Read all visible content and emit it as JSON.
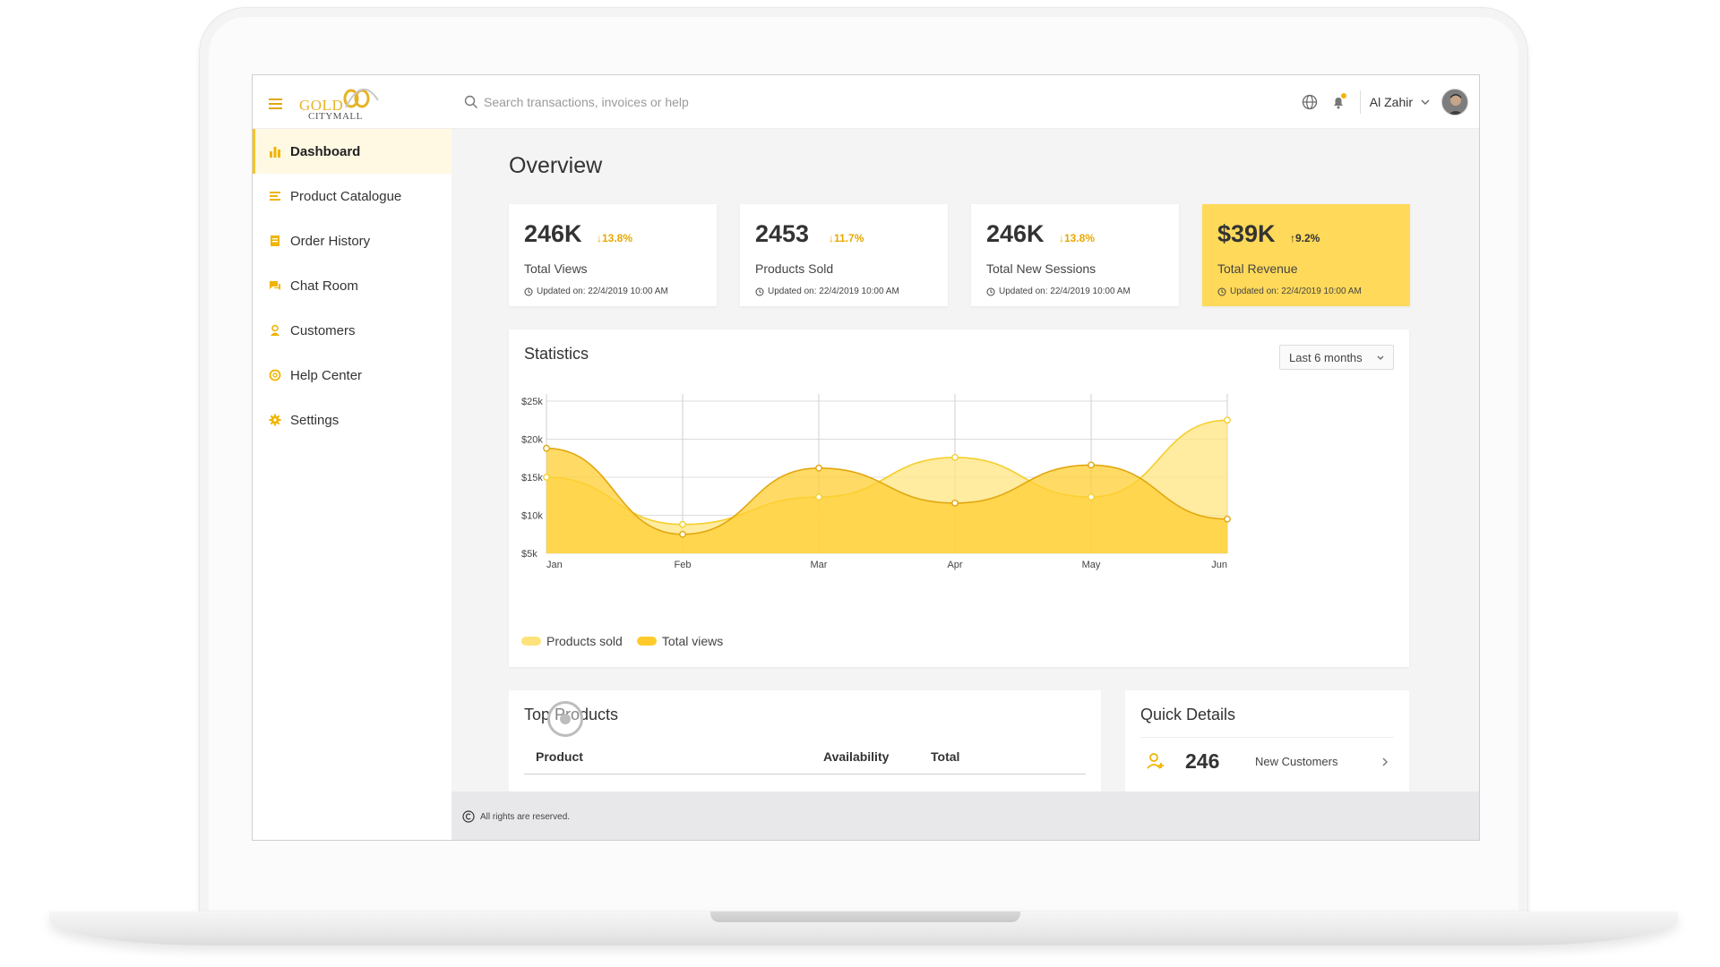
{
  "brand": {
    "logo_line1": "GOLD",
    "logo_line2": "CITYMALL"
  },
  "search": {
    "placeholder": "Search transactions, invoices or help"
  },
  "user": {
    "name": "Al Zahir"
  },
  "sidebar": {
    "items": [
      {
        "label": "Dashboard",
        "icon": "bar-chart-icon",
        "active": true
      },
      {
        "label": "Product Catalogue",
        "icon": "catalogue-icon"
      },
      {
        "label": "Order History",
        "icon": "order-history-icon"
      },
      {
        "label": "Chat Room",
        "icon": "chat-icon"
      },
      {
        "label": "Customers",
        "icon": "customer-icon"
      },
      {
        "label": "Help Center",
        "icon": "help-icon"
      },
      {
        "label": "Settings",
        "icon": "gear-icon"
      }
    ]
  },
  "overview": {
    "title": "Overview",
    "cards": [
      {
        "value": "246K",
        "change": "13.8%",
        "direction": "down",
        "label": "Total Views",
        "updated": "Updated on: 22/4/2019 10:00 AM"
      },
      {
        "value": "2453",
        "change": "11.7%",
        "direction": "down",
        "label": "Products Sold",
        "updated": "Updated on: 22/4/2019 10:00 AM"
      },
      {
        "value": "246K",
        "change": "13.8%",
        "direction": "down",
        "label": "Total New Sessions",
        "updated": "Updated on: 22/4/2019 10:00 AM"
      },
      {
        "value": "$39K",
        "change": "9.2%",
        "direction": "up",
        "label": "Total Revenue",
        "updated": "Updated on: 22/4/2019 10:00 AM"
      }
    ]
  },
  "statistics": {
    "title": "Statistics",
    "period": "Last 6 months"
  },
  "chart_data": {
    "type": "area",
    "x": [
      "Jan",
      "Feb",
      "Mar",
      "Apr",
      "May",
      "Jun"
    ],
    "y_ticks": [
      "$25k",
      "$20k",
      "$15k",
      "$10k",
      "$5k"
    ],
    "ylim": [
      5,
      25
    ],
    "series": [
      {
        "name": "Products sold",
        "values": [
          15,
          8.8,
          12.4,
          17.6,
          12.4,
          22.5
        ],
        "color": "#ffe37a"
      },
      {
        "name": "Total views",
        "values": [
          18.8,
          7.5,
          16.2,
          11.6,
          16.6,
          9.5
        ],
        "color": "#ffcb2b"
      }
    ],
    "grid": true,
    "legend": "bottom-left"
  },
  "top_products": {
    "title": "Top Products",
    "columns": {
      "product": "Product",
      "availability": "Availability",
      "total": "Total"
    }
  },
  "quick_details": {
    "title": "Quick Details",
    "rows": [
      {
        "count": "246",
        "label": "New Customers"
      }
    ]
  },
  "footer": {
    "text": "All rights are reserved."
  },
  "colors": {
    "accent": "#f5c525",
    "highlight_card": "#ffd95a",
    "down_change": "#e8a800"
  }
}
